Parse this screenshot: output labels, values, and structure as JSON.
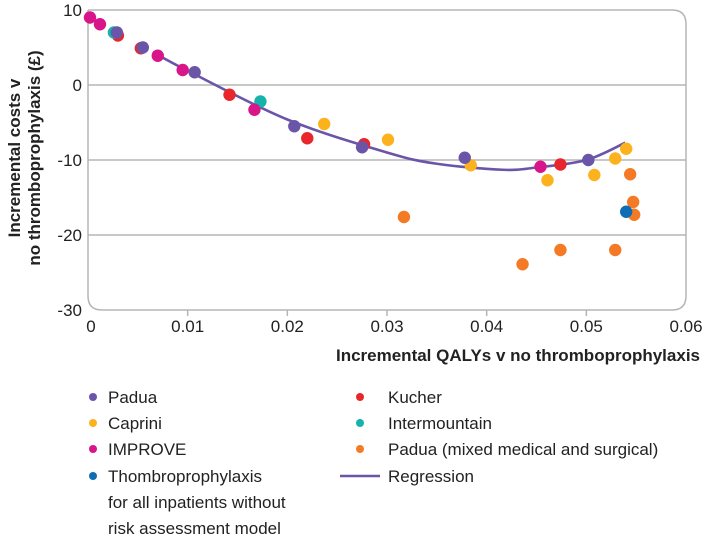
{
  "chart_data": {
    "type": "scatter",
    "xlabel": "Incremental QALYs v no thromboprophylaxis",
    "ylabel_lines": [
      "Incremental costs v",
      "no thromboprophylaxis (£)"
    ],
    "xlim": [
      0,
      0.06
    ],
    "ylim": [
      -30,
      10
    ],
    "xticks": [
      "0",
      "0.01",
      "0.02",
      "0.03",
      "0.04",
      "0.05",
      "0.06"
    ],
    "yticks": [
      "10",
      "0",
      "-10",
      "-20",
      "-30"
    ],
    "grid": "horizontal",
    "legend_placement": "bottom",
    "series": [
      {
        "name": "Padua",
        "color": "#6a55a8",
        "points": [
          [
            0.0029,
            7.0
          ],
          [
            0.0055,
            5.0
          ],
          [
            0.0107,
            1.7
          ],
          [
            0.0207,
            -5.5
          ],
          [
            0.0275,
            -8.3
          ],
          [
            0.0378,
            -9.7
          ],
          [
            0.0502,
            -10.0
          ]
        ]
      },
      {
        "name": "Caprini",
        "color": "#fbb21d",
        "points": [
          [
            0.0237,
            -5.2
          ],
          [
            0.0301,
            -7.3
          ],
          [
            0.0384,
            -10.7
          ],
          [
            0.0461,
            -12.7
          ],
          [
            0.0508,
            -12.0
          ],
          [
            0.0529,
            -9.8
          ],
          [
            0.054,
            -8.5
          ]
        ]
      },
      {
        "name": "IMPROVE",
        "color": "#d8168a",
        "points": [
          [
            0.0002,
            9.0
          ],
          [
            0.0012,
            8.1
          ],
          [
            0.007,
            3.9
          ],
          [
            0.0095,
            2.0
          ],
          [
            0.0167,
            -3.3
          ],
          [
            0.0454,
            -10.9
          ]
        ]
      },
      {
        "name": "Thombroprophylaxis for all inpatients without risk assessment model",
        "name_lines": [
          "Thombroprophylaxis",
          "for all inpatients without",
          "risk assessment model"
        ],
        "color": "#0f6db5",
        "points": [
          [
            0.054,
            -16.9
          ]
        ]
      },
      {
        "name": "Kucher",
        "color": "#e8262b",
        "points": [
          [
            0.003,
            6.6
          ],
          [
            0.0053,
            4.9
          ],
          [
            0.0142,
            -1.3
          ],
          [
            0.022,
            -7.1
          ],
          [
            0.0277,
            -7.9
          ],
          [
            0.0474,
            -10.6
          ]
        ]
      },
      {
        "name": "Intermountain",
        "color": "#16b3ad",
        "points": [
          [
            0.0026,
            7.0
          ],
          [
            0.0173,
            -2.2
          ]
        ]
      },
      {
        "name": "Padua (mixed medical and surgical)",
        "color": "#f47a26",
        "points": [
          [
            0.0317,
            -17.6
          ],
          [
            0.0436,
            -23.9
          ],
          [
            0.0474,
            -22.0
          ],
          [
            0.0529,
            -22.0
          ],
          [
            0.0544,
            -11.9
          ],
          [
            0.0547,
            -15.6
          ],
          [
            0.0548,
            -17.3
          ]
        ]
      }
    ],
    "regression": {
      "name": "Regression",
      "color": "#6a55a8",
      "points": [
        [
          0.0065,
          4.4
        ],
        [
          0.01,
          1.9
        ],
        [
          0.02,
          -4.6
        ],
        [
          0.03,
          -9.0
        ],
        [
          0.035,
          -10.5
        ],
        [
          0.0416,
          -11.3
        ],
        [
          0.045,
          -11.0
        ],
        [
          0.05,
          -10.0
        ],
        [
          0.0539,
          -7.7
        ]
      ]
    }
  }
}
